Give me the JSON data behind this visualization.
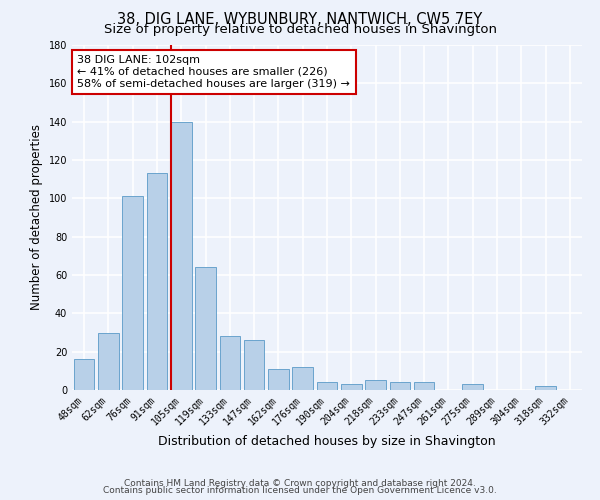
{
  "title": "38, DIG LANE, WYBUNBURY, NANTWICH, CW5 7EY",
  "subtitle": "Size of property relative to detached houses in Shavington",
  "xlabel": "Distribution of detached houses by size in Shavington",
  "ylabel": "Number of detached properties",
  "categories": [
    "48sqm",
    "62sqm",
    "76sqm",
    "91sqm",
    "105sqm",
    "119sqm",
    "133sqm",
    "147sqm",
    "162sqm",
    "176sqm",
    "190sqm",
    "204sqm",
    "218sqm",
    "233sqm",
    "247sqm",
    "261sqm",
    "275sqm",
    "289sqm",
    "304sqm",
    "318sqm",
    "332sqm"
  ],
  "values": [
    16,
    30,
    101,
    113,
    140,
    64,
    28,
    26,
    11,
    12,
    4,
    3,
    5,
    4,
    4,
    0,
    3,
    0,
    0,
    2,
    0
  ],
  "bar_color": "#b8d0e8",
  "bar_edge_color": "#5a9ac8",
  "background_color": "#edf2fb",
  "grid_color": "#ffffff",
  "vline_color": "#cc0000",
  "annotation_text": "38 DIG LANE: 102sqm\n← 41% of detached houses are smaller (226)\n58% of semi-detached houses are larger (319) →",
  "annotation_box_facecolor": "#ffffff",
  "annotation_box_edgecolor": "#cc0000",
  "ylim": [
    0,
    180
  ],
  "yticks": [
    0,
    20,
    40,
    60,
    80,
    100,
    120,
    140,
    160,
    180
  ],
  "footnote1": "Contains HM Land Registry data © Crown copyright and database right 2024.",
  "footnote2": "Contains public sector information licensed under the Open Government Licence v3.0.",
  "title_fontsize": 10.5,
  "subtitle_fontsize": 9.5,
  "xlabel_fontsize": 9,
  "ylabel_fontsize": 8.5,
  "tick_fontsize": 7,
  "annotation_fontsize": 8,
  "footnote_fontsize": 6.5
}
